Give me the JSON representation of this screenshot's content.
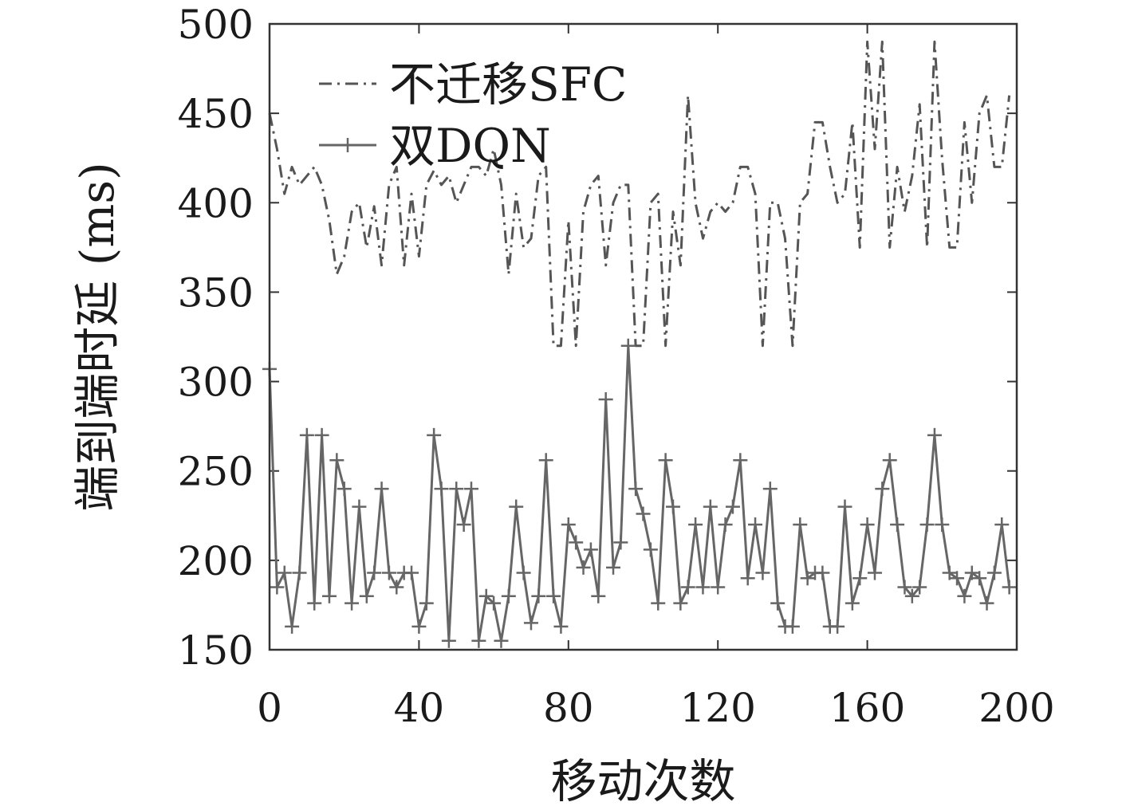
{
  "chart_data": {
    "type": "line",
    "xlabel": "移动次数",
    "ylabel": "端到端时延 (ms)",
    "xlim": [
      0,
      200
    ],
    "ylim": [
      150,
      500
    ],
    "xticks": [
      0,
      40,
      80,
      120,
      160,
      200
    ],
    "yticks": [
      150,
      200,
      250,
      300,
      350,
      400,
      450,
      500
    ],
    "grid": false,
    "legend_position": "top-left",
    "series": [
      {
        "name": "不迁移SFC",
        "style": "dash-dot",
        "marker": "none",
        "color": "#555555",
        "x": [
          0,
          2,
          4,
          6,
          8,
          10,
          12,
          14,
          16,
          18,
          20,
          22,
          24,
          26,
          28,
          30,
          32,
          34,
          36,
          38,
          40,
          42,
          44,
          46,
          48,
          50,
          52,
          54,
          56,
          58,
          60,
          62,
          64,
          66,
          68,
          70,
          72,
          74,
          76,
          78,
          80,
          82,
          84,
          86,
          88,
          90,
          92,
          94,
          96,
          98,
          100,
          102,
          104,
          106,
          108,
          110,
          112,
          114,
          116,
          118,
          120,
          122,
          124,
          126,
          128,
          130,
          132,
          134,
          136,
          138,
          140,
          142,
          144,
          146,
          148,
          150,
          152,
          154,
          156,
          158,
          160,
          162,
          164,
          166,
          168,
          170,
          172,
          174,
          176,
          178,
          180,
          182,
          184,
          186,
          188,
          190,
          192,
          194,
          196,
          198
        ],
        "values": [
          450,
          430,
          405,
          420,
          410,
          415,
          420,
          410,
          390,
          360,
          370,
          395,
          400,
          375,
          398,
          365,
          410,
          420,
          365,
          405,
          370,
          410,
          418,
          410,
          415,
          400,
          410,
          420,
          420,
          415,
          430,
          410,
          360,
          405,
          375,
          380,
          415,
          420,
          320,
          320,
          390,
          320,
          395,
          410,
          415,
          365,
          400,
          410,
          410,
          320,
          320,
          400,
          405,
          320,
          395,
          365,
          460,
          400,
          380,
          395,
          400,
          395,
          400,
          420,
          420,
          405,
          320,
          400,
          400,
          380,
          320,
          400,
          405,
          445,
          445,
          420,
          400,
          405,
          445,
          375,
          490,
          430,
          490,
          375,
          420,
          395,
          415,
          455,
          375,
          490,
          425,
          375,
          375,
          445,
          400,
          450,
          460,
          420,
          420,
          460
        ]
      },
      {
        "name": "双DQN",
        "style": "solid",
        "marker": "plus",
        "color": "#666666",
        "x": [
          0,
          2,
          4,
          6,
          8,
          10,
          12,
          14,
          16,
          18,
          20,
          22,
          24,
          26,
          28,
          30,
          32,
          34,
          36,
          38,
          40,
          42,
          44,
          46,
          48,
          50,
          52,
          54,
          56,
          58,
          60,
          62,
          64,
          66,
          68,
          70,
          72,
          74,
          76,
          78,
          80,
          82,
          84,
          86,
          88,
          90,
          92,
          94,
          96,
          98,
          100,
          102,
          104,
          106,
          108,
          110,
          112,
          114,
          116,
          118,
          120,
          122,
          124,
          126,
          128,
          130,
          132,
          134,
          136,
          138,
          140,
          142,
          144,
          146,
          148,
          150,
          152,
          154,
          156,
          158,
          160,
          162,
          164,
          166,
          168,
          170,
          172,
          174,
          176,
          178,
          180,
          182,
          184,
          186,
          188,
          190,
          192,
          194,
          196,
          198
        ],
        "values": [
          307,
          185,
          193,
          163,
          193,
          270,
          176,
          270,
          180,
          256,
          240,
          176,
          230,
          180,
          193,
          240,
          193,
          185,
          193,
          193,
          163,
          176,
          270,
          240,
          155,
          240,
          220,
          240,
          155,
          180,
          176,
          155,
          180,
          230,
          193,
          165,
          180,
          256,
          180,
          163,
          220,
          210,
          196,
          206,
          180,
          290,
          196,
          210,
          320,
          240,
          226,
          206,
          176,
          256,
          230,
          176,
          185,
          220,
          185,
          230,
          185,
          220,
          230,
          256,
          190,
          220,
          193,
          240,
          176,
          163,
          163,
          220,
          190,
          193,
          193,
          163,
          163,
          230,
          176,
          190,
          220,
          193,
          240,
          256,
          220,
          185,
          180,
          185,
          220,
          270,
          220,
          193,
          190,
          180,
          193,
          190,
          176,
          193,
          220,
          185
        ]
      }
    ]
  }
}
